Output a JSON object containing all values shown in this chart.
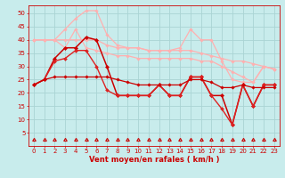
{
  "x": [
    0,
    1,
    2,
    3,
    4,
    5,
    6,
    7,
    8,
    9,
    10,
    11,
    12,
    13,
    14,
    15,
    16,
    17,
    18,
    19,
    20,
    21,
    22,
    23
  ],
  "series": [
    {
      "name": "light_top1",
      "y": [
        40,
        40,
        40,
        40,
        40,
        40,
        40,
        38,
        37,
        37,
        37,
        36,
        36,
        36,
        36,
        36,
        35,
        34,
        33,
        32,
        32,
        31,
        30,
        29
      ],
      "color": "#ffb0b0",
      "linewidth": 0.9,
      "marker": "D",
      "markersize": 1.8,
      "zorder": 2
    },
    {
      "name": "light_spike",
      "y": [
        40,
        40,
        40,
        44,
        48,
        51,
        51,
        42,
        38,
        37,
        37,
        36,
        36,
        36,
        37,
        44,
        40,
        40,
        32,
        25,
        24,
        24,
        30,
        29
      ],
      "color": "#ffb0b0",
      "linewidth": 0.9,
      "marker": "D",
      "markersize": 1.8,
      "zorder": 2
    },
    {
      "name": "light_mid",
      "y": [
        40,
        40,
        40,
        37,
        44,
        37,
        36,
        35,
        34,
        34,
        33,
        33,
        33,
        33,
        33,
        33,
        32,
        32,
        30,
        28,
        26,
        24,
        30,
        29
      ],
      "color": "#ffb0b0",
      "linewidth": 0.9,
      "marker": "D",
      "markersize": 1.8,
      "zorder": 2
    },
    {
      "name": "dark_main",
      "y": [
        23,
        25,
        33,
        37,
        37,
        41,
        40,
        30,
        19,
        19,
        19,
        19,
        23,
        19,
        19,
        26,
        26,
        19,
        19,
        8,
        23,
        15,
        23,
        23
      ],
      "color": "#cc0000",
      "linewidth": 1.1,
      "marker": "D",
      "markersize": 2.2,
      "zorder": 3
    },
    {
      "name": "dark_lower",
      "y": [
        23,
        25,
        32,
        33,
        36,
        36,
        30,
        21,
        19,
        19,
        19,
        19,
        23,
        19,
        19,
        26,
        26,
        19,
        14,
        8,
        23,
        15,
        23,
        23
      ],
      "color": "#dd2222",
      "linewidth": 1.0,
      "marker": "D",
      "markersize": 2.0,
      "zorder": 3
    },
    {
      "name": "dark_line",
      "y": [
        23,
        25,
        26,
        26,
        26,
        26,
        26,
        26,
        25,
        24,
        23,
        23,
        23,
        23,
        23,
        25,
        25,
        24,
        22,
        22,
        23,
        22,
        22,
        22
      ],
      "color": "#cc0000",
      "linewidth": 0.9,
      "marker": "D",
      "markersize": 1.8,
      "zorder": 3
    }
  ],
  "xlabel": "Vent moyen/en rafales ( km/h )",
  "xlim": [
    -0.5,
    23.5
  ],
  "ylim": [
    0,
    53
  ],
  "yticks": [
    5,
    10,
    15,
    20,
    25,
    30,
    35,
    40,
    45,
    50
  ],
  "xticks": [
    0,
    1,
    2,
    3,
    4,
    5,
    6,
    7,
    8,
    9,
    10,
    11,
    12,
    13,
    14,
    15,
    16,
    17,
    18,
    19,
    20,
    21,
    22,
    23
  ],
  "bg_color": "#c8ecec",
  "grid_color": "#aad4d4",
  "arrow_color": "#cc0000",
  "spine_color": "#cc0000",
  "tick_color": "#cc0000",
  "label_color": "#cc0000",
  "label_fontsize": 6.0,
  "tick_fontsize": 5.0
}
